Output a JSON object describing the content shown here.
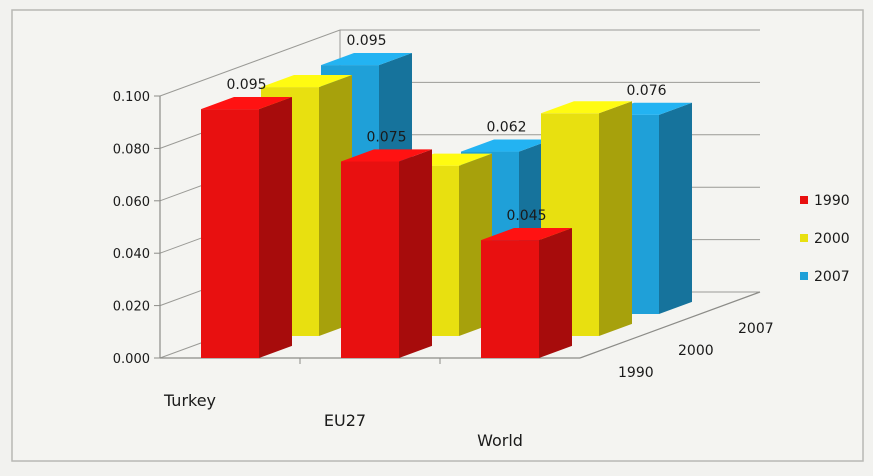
{
  "chart_data": {
    "type": "bar",
    "title": "",
    "xlabel": "",
    "ylabel": "",
    "categories": [
      "Turkey",
      "EU27",
      "World"
    ],
    "depth_labels": [
      "1990",
      "2000",
      "2007"
    ],
    "ylim": [
      0,
      0.1
    ],
    "yticks": [
      "0.000",
      "0.020",
      "0.040",
      "0.060",
      "0.080",
      "0.100"
    ],
    "grid": true,
    "legend_position": "right",
    "series": [
      {
        "name": "1990",
        "color": "#e81010",
        "values": [
          0.095,
          0.075,
          0.045
        ],
        "labels": [
          "0.095",
          "0.075",
          "0.045"
        ]
      },
      {
        "name": "2000",
        "color": "#e8e010",
        "values": [
          0.095,
          0.065,
          0.085
        ],
        "labels": [
          "",
          "",
          ""
        ]
      },
      {
        "name": "2007",
        "color": "#1fa0d8",
        "values": [
          0.095,
          0.062,
          0.076
        ],
        "labels": [
          "0.095",
          "0.062",
          "0.076"
        ]
      }
    ]
  }
}
